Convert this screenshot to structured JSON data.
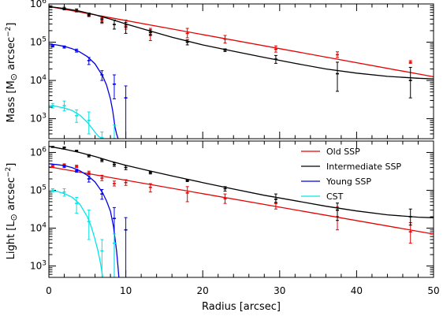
{
  "chart_data": [
    {
      "type": "line",
      "panel": "top",
      "title": "",
      "ylabel_main": "Mass [M",
      "ylabel_unit": " arcsec",
      "ylabel_exp": "−2",
      "ylabel_close": "]",
      "xlabel": "",
      "xlim": [
        0,
        50
      ],
      "ylim": [
        300,
        1000000
      ],
      "yscale": "log",
      "x_ticks": [
        0,
        10,
        20,
        30,
        40,
        50
      ],
      "y_ticks": [
        {
          "value": 1000,
          "base": "10",
          "exp": "3"
        },
        {
          "value": 10000,
          "base": "10",
          "exp": "4"
        },
        {
          "value": 100000,
          "base": "10",
          "exp": "5"
        },
        {
          "value": 1000000,
          "base": "10",
          "exp": "6"
        }
      ],
      "series": [
        {
          "name": "Old SSP",
          "color": "#e60000",
          "model": {
            "x": [
              0,
              50
            ],
            "y": [
              860000,
              12500
            ]
          },
          "points": [
            {
              "x": 5.2,
              "y": 500000,
              "lo": 470000,
              "hi": 530000
            },
            {
              "x": 6.9,
              "y": 360000,
              "lo": 310000,
              "hi": 430000
            },
            {
              "x": 10.0,
              "y": 280000,
              "lo": 220000,
              "hi": 380000
            },
            {
              "x": 13.2,
              "y": 160000,
              "lo": 110000,
              "hi": 230000
            },
            {
              "x": 18.0,
              "y": 170000,
              "lo": 130000,
              "hi": 230000
            },
            {
              "x": 22.9,
              "y": 120000,
              "lo": 95000,
              "hi": 150000
            },
            {
              "x": 29.5,
              "y": 65000,
              "lo": 55000,
              "hi": 80000
            },
            {
              "x": 37.5,
              "y": 47000,
              "lo": 40000,
              "hi": 56000
            },
            {
              "x": 47.0,
              "y": 30000,
              "lo": 28000,
              "hi": 33000
            }
          ]
        },
        {
          "name": "Intermediate SSP",
          "color": "#000000",
          "model": {
            "x": [
              0,
              2,
              4,
              6,
              8,
              10,
              13,
              16,
              20,
              24,
              28,
              32,
              36,
              40,
              44,
              48,
              50
            ],
            "y": [
              850000,
              760000,
              650000,
              520000,
              400000,
              300000,
              200000,
              135000,
              85000,
              58000,
              40000,
              28000,
              20000,
              15500,
              12800,
              11400,
              11000
            ]
          },
          "points": [
            {
              "x": 2.0,
              "y": 760000,
              "lo": 700000,
              "hi": 820000
            },
            {
              "x": 3.6,
              "y": 680000,
              "lo": 620000,
              "hi": 740000
            },
            {
              "x": 5.2,
              "y": 520000,
              "lo": 470000,
              "hi": 580000
            },
            {
              "x": 6.9,
              "y": 400000,
              "lo": 330000,
              "hi": 470000
            },
            {
              "x": 8.5,
              "y": 290000,
              "lo": 220000,
              "hi": 380000
            },
            {
              "x": 10.0,
              "y": 250000,
              "lo": 170000,
              "hi": 330000
            },
            {
              "x": 13.2,
              "y": 180000,
              "lo": 150000,
              "hi": 210000
            },
            {
              "x": 18.0,
              "y": 100000,
              "lo": 85000,
              "hi": 115000
            },
            {
              "x": 22.9,
              "y": 62000,
              "lo": 57000,
              "hi": 67000
            },
            {
              "x": 29.5,
              "y": 36000,
              "lo": 28000,
              "hi": 45000
            },
            {
              "x": 37.5,
              "y": 15000,
              "lo": 5200,
              "hi": 30000
            },
            {
              "x": 47.0,
              "y": 10000,
              "lo": 3500,
              "hi": 22000
            }
          ]
        },
        {
          "name": "Young SSP",
          "color": "#0000e6",
          "model": {
            "x": [
              0,
              1,
              2,
              3,
              4,
              5,
              6,
              7,
              7.5,
              8,
              8.3,
              8.6,
              8.8,
              9.0
            ],
            "y": [
              90000,
              85000,
              78000,
              68000,
              56000,
              42000,
              27000,
              13000,
              7500,
              3300,
              1600,
              600,
              400,
              300
            ]
          },
          "points": [
            {
              "x": 0.5,
              "y": 80000,
              "lo": 75000,
              "hi": 86000
            },
            {
              "x": 2.0,
              "y": 75000,
              "lo": 70000,
              "hi": 80000
            },
            {
              "x": 3.6,
              "y": 60000,
              "lo": 55000,
              "hi": 66000
            },
            {
              "x": 5.2,
              "y": 33000,
              "lo": 26000,
              "hi": 40000
            },
            {
              "x": 6.9,
              "y": 14000,
              "lo": 10000,
              "hi": 18000
            },
            {
              "x": 8.5,
              "y": 8000,
              "lo": 3300,
              "hi": 14000
            },
            {
              "x": 10.0,
              "y": 3500,
              "lo": 300,
              "hi": 7200
            }
          ]
        },
        {
          "name": "CST",
          "color": "#00e6e6",
          "model": {
            "x": [
              0,
              1,
              2,
              3,
              4,
              5,
              5.5,
              6,
              6.5,
              7.0
            ],
            "y": [
              2200,
              2100,
              1900,
              1650,
              1250,
              800,
              600,
              440,
              340,
              300
            ]
          },
          "points": [
            {
              "x": 0.5,
              "y": 2200,
              "lo": 1900,
              "hi": 2500
            },
            {
              "x": 2.0,
              "y": 2200,
              "lo": 1600,
              "hi": 2900
            },
            {
              "x": 3.6,
              "y": 1200,
              "lo": 800,
              "hi": 1700
            },
            {
              "x": 5.2,
              "y": 900,
              "lo": 400,
              "hi": 1500
            },
            {
              "x": 6.9,
              "y": 320,
              "lo": 300,
              "hi": 450
            },
            {
              "x": 8.5,
              "y": 300,
              "lo": 300,
              "hi": 680
            }
          ]
        }
      ]
    },
    {
      "type": "line",
      "panel": "bottom",
      "title": "",
      "ylabel_main": "Light [L",
      "ylabel_unit": " arcsec",
      "ylabel_exp": "−2",
      "ylabel_close": "]",
      "xlabel": "Radius [arcsec]",
      "xlim": [
        0,
        50
      ],
      "ylim": [
        500,
        2000000
      ],
      "yscale": "log",
      "x_ticks": [
        0,
        10,
        20,
        30,
        40,
        50
      ],
      "y_ticks": [
        {
          "value": 1000,
          "base": "10",
          "exp": "3"
        },
        {
          "value": 10000,
          "base": "10",
          "exp": "4"
        },
        {
          "value": 100000,
          "base": "10",
          "exp": "5"
        },
        {
          "value": 1000000,
          "base": "10",
          "exp": "6"
        }
      ],
      "legend": {
        "placement": "top-right"
      },
      "series": [
        {
          "name": "Old SSP",
          "color": "#e60000",
          "model": {
            "x": [
              0,
              50
            ],
            "y": [
              420000,
              7000
            ]
          },
          "points": [
            {
              "x": 0.5,
              "y": 430000,
              "lo": 400000,
              "hi": 460000
            },
            {
              "x": 2.0,
              "y": 470000,
              "lo": 440000,
              "hi": 500000
            },
            {
              "x": 3.6,
              "y": 430000,
              "lo": 400000,
              "hi": 460000
            },
            {
              "x": 5.2,
              "y": 290000,
              "lo": 260000,
              "hi": 320000
            },
            {
              "x": 6.9,
              "y": 210000,
              "lo": 180000,
              "hi": 250000
            },
            {
              "x": 8.5,
              "y": 150000,
              "lo": 130000,
              "hi": 175000
            },
            {
              "x": 10.0,
              "y": 160000,
              "lo": 135000,
              "hi": 190000
            },
            {
              "x": 13.2,
              "y": 120000,
              "lo": 90000,
              "hi": 150000
            },
            {
              "x": 18.0,
              "y": 85000,
              "lo": 50000,
              "hi": 125000
            },
            {
              "x": 22.9,
              "y": 60000,
              "lo": 45000,
              "hi": 80000
            },
            {
              "x": 29.5,
              "y": 45000,
              "lo": 32000,
              "hi": 58000
            },
            {
              "x": 37.5,
              "y": 20000,
              "lo": 9000,
              "hi": 36000
            },
            {
              "x": 47.0,
              "y": 8000,
              "lo": 4000,
              "hi": 14000
            }
          ]
        },
        {
          "name": "Intermediate SSP",
          "color": "#000000",
          "model": {
            "x": [
              0,
              2,
              4,
              6,
              8,
              10,
              13,
              16,
              20,
              24,
              28,
              32,
              36,
              40,
              44,
              48,
              50
            ],
            "y": [
              1450000,
              1220000,
              1000000,
              780000,
              590000,
              460000,
              330000,
              240000,
              160000,
              108000,
              74000,
              53000,
              38000,
              28500,
              22500,
              19500,
              18800
            ]
          },
          "points": [
            {
              "x": 0.5,
              "y": 1400000,
              "lo": 1350000,
              "hi": 1450000
            },
            {
              "x": 2.0,
              "y": 1350000,
              "lo": 1300000,
              "hi": 1400000
            },
            {
              "x": 3.6,
              "y": 1100000,
              "lo": 1050000,
              "hi": 1150000
            },
            {
              "x": 5.2,
              "y": 820000,
              "lo": 760000,
              "hi": 880000
            },
            {
              "x": 6.9,
              "y": 620000,
              "lo": 570000,
              "hi": 670000
            },
            {
              "x": 8.5,
              "y": 480000,
              "lo": 430000,
              "hi": 530000
            },
            {
              "x": 10.0,
              "y": 400000,
              "lo": 350000,
              "hi": 450000
            },
            {
              "x": 13.2,
              "y": 290000,
              "lo": 270000,
              "hi": 310000
            },
            {
              "x": 18.0,
              "y": 180000,
              "lo": 170000,
              "hi": 190000
            },
            {
              "x": 22.9,
              "y": 110000,
              "lo": 95000,
              "hi": 125000
            },
            {
              "x": 29.5,
              "y": 58000,
              "lo": 48000,
              "hi": 80000
            },
            {
              "x": 37.5,
              "y": 30000,
              "lo": 16000,
              "hi": 46000
            },
            {
              "x": 47.0,
              "y": 20000,
              "lo": 12000,
              "hi": 32000
            }
          ]
        },
        {
          "name": "Young SSP",
          "color": "#0000e6",
          "model": {
            "x": [
              0,
              1,
              2,
              3,
              4,
              5,
              6,
              6.5,
              7,
              7.5,
              8,
              8.4,
              8.8,
              9.0,
              9.1
            ],
            "y": [
              500000,
              480000,
              450000,
              400000,
              330000,
              250000,
              165000,
              120000,
              85000,
              52000,
              28000,
              11000,
              2500,
              900,
              500
            ]
          },
          "points": [
            {
              "x": 2.0,
              "y": 430000,
              "lo": 400000,
              "hi": 460000
            },
            {
              "x": 3.6,
              "y": 330000,
              "lo": 300000,
              "hi": 360000
            },
            {
              "x": 5.2,
              "y": 200000,
              "lo": 165000,
              "hi": 240000
            },
            {
              "x": 6.9,
              "y": 80000,
              "lo": 58000,
              "hi": 105000
            },
            {
              "x": 8.5,
              "y": 18000,
              "lo": 500,
              "hi": 35000
            },
            {
              "x": 10.0,
              "y": 9000,
              "lo": 500,
              "hi": 19000
            }
          ]
        },
        {
          "name": "CST",
          "color": "#00e6e6",
          "model": {
            "x": [
              0,
              1,
              2,
              3,
              4,
              5,
              5.5,
              6,
              6.4,
              6.7,
              6.9,
              7.0
            ],
            "y": [
              100000,
              94000,
              82000,
              66000,
              44000,
              20000,
              11000,
              5000,
              2400,
              1200,
              700,
              500
            ]
          },
          "points": [
            {
              "x": 0.5,
              "y": 100000,
              "lo": 90000,
              "hi": 110000
            },
            {
              "x": 2.0,
              "y": 90000,
              "lo": 70000,
              "hi": 110000
            },
            {
              "x": 3.6,
              "y": 45000,
              "lo": 25000,
              "hi": 65000
            },
            {
              "x": 5.2,
              "y": 15000,
              "lo": 5000,
              "hi": 30000
            },
            {
              "x": 6.9,
              "y": 2500,
              "lo": 500,
              "hi": 5000
            },
            {
              "x": 8.5,
              "y": 4000,
              "lo": 500,
              "hi": 7000
            }
          ]
        }
      ]
    }
  ]
}
